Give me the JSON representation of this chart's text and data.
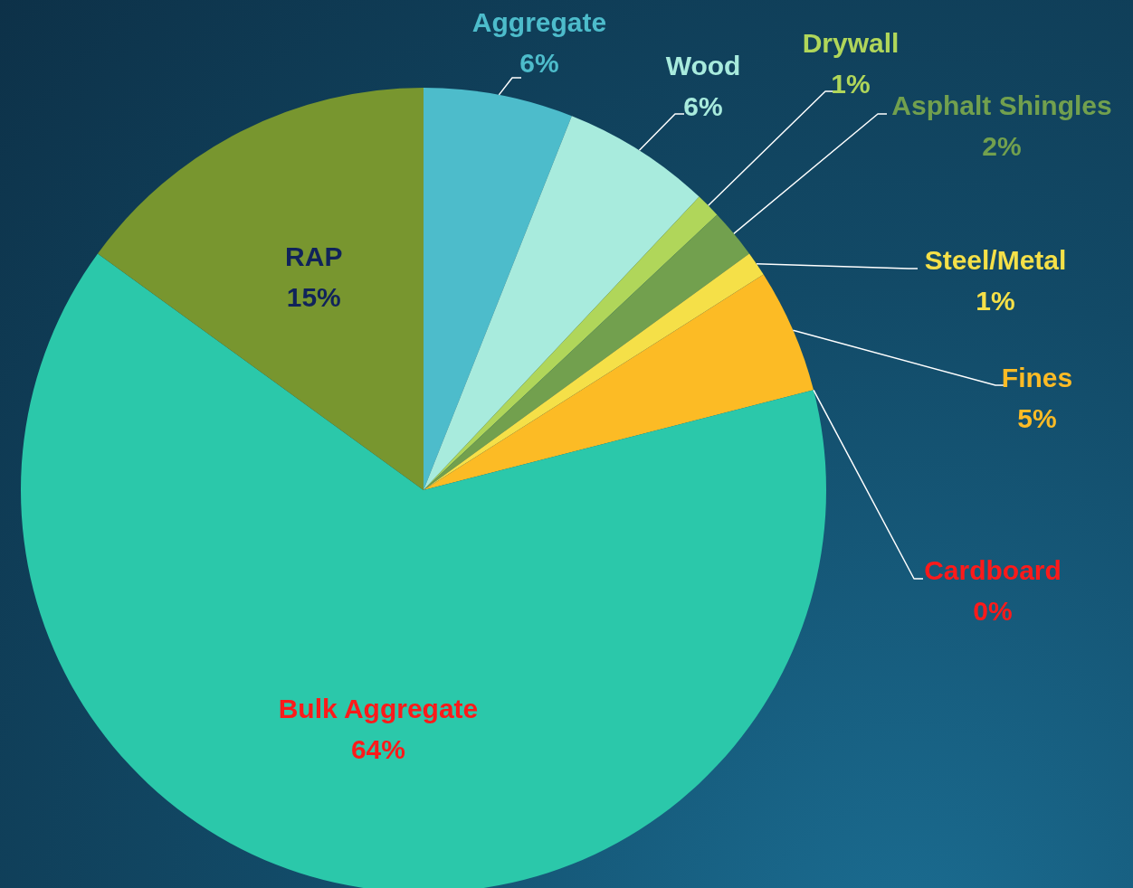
{
  "chart_data": {
    "type": "pie",
    "categories": [
      "Aggregate",
      "Wood",
      "Drywall",
      "Asphalt Shingles",
      "Steel/Metal",
      "Fines",
      "Cardboard",
      "Bulk Aggregate",
      "RAP"
    ],
    "values": [
      6,
      6,
      1,
      2,
      1,
      5,
      0,
      64,
      15
    ],
    "value_labels": [
      "6%",
      "6%",
      "1%",
      "2%",
      "1%",
      "5%",
      "0%",
      "64%",
      "15%"
    ],
    "colors": [
      "#4dbccb",
      "#a8ebdd",
      "#b0d65a",
      "#72a04e",
      "#f5e048",
      "#fcbb25",
      "#2a7f95",
      "#2bc8aa",
      "#78962f"
    ],
    "legend": false
  }
}
